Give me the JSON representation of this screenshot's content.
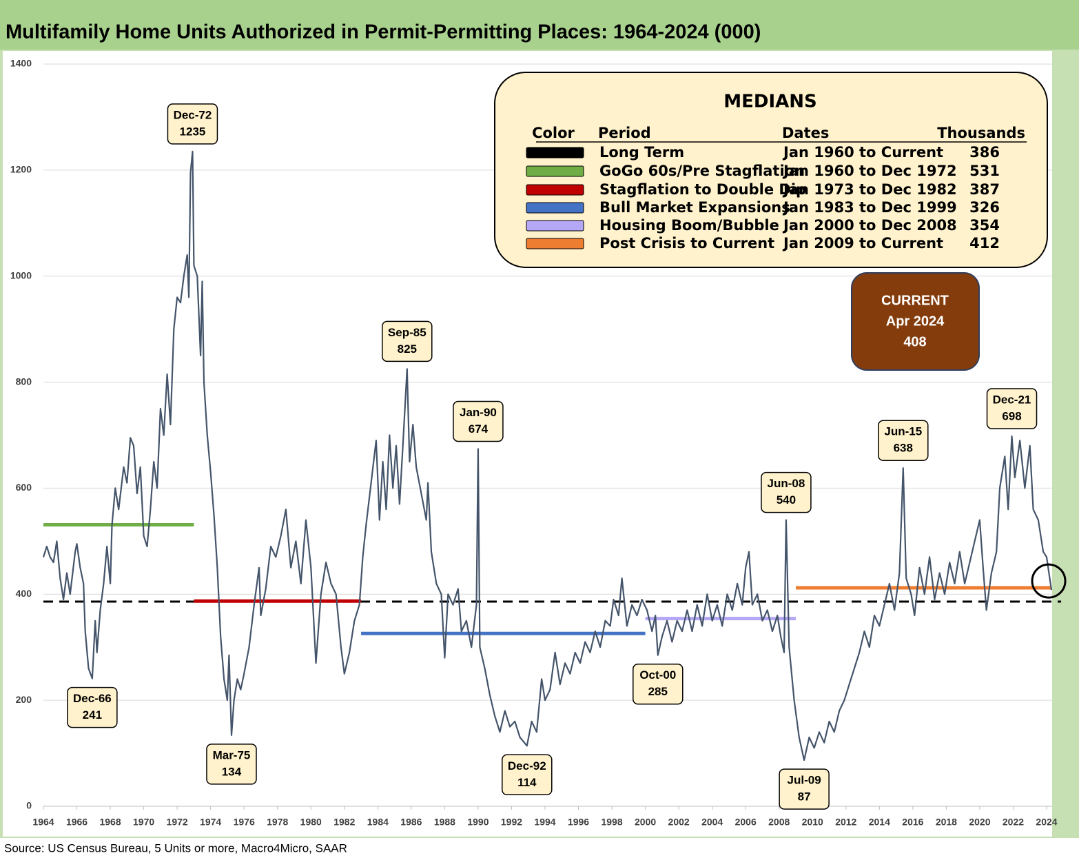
{
  "chart_data": {
    "type": "line",
    "title": "Multifamily Home Units Authorized in Permit-Permitting Places: 1964-2024 (000)",
    "source": "Source: US Census Bureau, 5 Units or more, Macro4Micro, SAAR",
    "color": "#44546a",
    "xlim": [
      1964,
      2024.33
    ],
    "ylim": [
      0,
      1400
    ],
    "yticks": [
      0,
      200,
      400,
      600,
      800,
      1000,
      1200,
      1400
    ],
    "xticks": [
      1964,
      1966,
      1968,
      1970,
      1972,
      1974,
      1976,
      1978,
      1980,
      1982,
      1984,
      1986,
      1988,
      1990,
      1992,
      1994,
      1996,
      1998,
      2000,
      2002,
      2004,
      2006,
      2008,
      2010,
      2012,
      2014,
      2016,
      2018,
      2020,
      2022,
      2024
    ],
    "grid": true,
    "x": [
      1964.0,
      1964.2,
      1964.4,
      1964.6,
      1964.8,
      1965.0,
      1965.2,
      1965.4,
      1965.6,
      1965.9,
      1966.0,
      1966.2,
      1966.4,
      1966.5,
      1966.7,
      1966.92,
      1967.1,
      1967.2,
      1967.4,
      1967.6,
      1967.8,
      1968.0,
      1968.1,
      1968.3,
      1968.5,
      1968.8,
      1969.0,
      1969.2,
      1969.4,
      1969.6,
      1969.8,
      1970.0,
      1970.2,
      1970.4,
      1970.6,
      1970.8,
      1971.0,
      1971.2,
      1971.4,
      1971.6,
      1971.8,
      1972.0,
      1972.2,
      1972.4,
      1972.6,
      1972.7,
      1972.8,
      1972.92,
      1973.0,
      1973.2,
      1973.4,
      1973.5,
      1973.6,
      1973.8,
      1974.0,
      1974.2,
      1974.4,
      1974.6,
      1974.8,
      1975.0,
      1975.1,
      1975.25,
      1975.4,
      1975.6,
      1975.8,
      1976.0,
      1976.3,
      1976.6,
      1976.9,
      1977.0,
      1977.3,
      1977.6,
      1977.9,
      1978.2,
      1978.5,
      1978.8,
      1979.1,
      1979.4,
      1979.7,
      1980.0,
      1980.3,
      1980.6,
      1980.9,
      1981.2,
      1981.5,
      1981.8,
      1982.0,
      1982.3,
      1982.6,
      1982.9,
      1983.1,
      1983.3,
      1983.6,
      1983.9,
      1984.1,
      1984.3,
      1984.5,
      1984.7,
      1984.9,
      1985.1,
      1985.3,
      1985.5,
      1985.75,
      1985.9,
      1986.1,
      1986.3,
      1986.6,
      1986.9,
      1987.0,
      1987.2,
      1987.5,
      1987.8,
      1988.0,
      1988.2,
      1988.5,
      1988.8,
      1989.0,
      1989.3,
      1989.6,
      1989.9,
      1990.0,
      1990.1,
      1990.4,
      1990.7,
      1991.0,
      1991.3,
      1991.6,
      1991.9,
      1992.2,
      1992.5,
      1992.92,
      1993.2,
      1993.5,
      1993.8,
      1994.0,
      1994.3,
      1994.6,
      1994.9,
      1995.2,
      1995.5,
      1995.8,
      1996.1,
      1996.4,
      1996.7,
      1997.0,
      1997.3,
      1997.6,
      1997.9,
      1998.1,
      1998.4,
      1998.6,
      1998.9,
      1999.2,
      1999.5,
      1999.8,
      2000.1,
      2000.4,
      2000.6,
      2000.75,
      2001.0,
      2001.3,
      2001.6,
      2001.9,
      2002.2,
      2002.5,
      2002.8,
      2003.1,
      2003.4,
      2003.7,
      2004.0,
      2004.3,
      2004.6,
      2004.9,
      2005.2,
      2005.5,
      2005.8,
      2006.0,
      2006.2,
      2006.4,
      2006.7,
      2007.0,
      2007.3,
      2007.6,
      2007.9,
      2008.1,
      2008.3,
      2008.42,
      2008.6,
      2008.9,
      2009.2,
      2009.5,
      2009.8,
      2010.1,
      2010.4,
      2010.7,
      2011.0,
      2011.3,
      2011.6,
      2011.9,
      2012.2,
      2012.5,
      2012.8,
      2013.1,
      2013.4,
      2013.7,
      2014.0,
      2014.3,
      2014.6,
      2014.9,
      2015.2,
      2015.42,
      2015.6,
      2015.9,
      2016.1,
      2016.4,
      2016.7,
      2017.0,
      2017.3,
      2017.6,
      2017.9,
      2018.2,
      2018.5,
      2018.8,
      2019.1,
      2019.4,
      2019.7,
      2020.0,
      2020.2,
      2020.4,
      2020.7,
      2021.0,
      2021.2,
      2021.5,
      2021.7,
      2021.92,
      2022.1,
      2022.4,
      2022.7,
      2023.0,
      2023.2,
      2023.5,
      2023.8,
      2024.0,
      2024.29
    ],
    "values": [
      470,
      490,
      470,
      460,
      500,
      430,
      390,
      440,
      400,
      480,
      495,
      450,
      420,
      330,
      260,
      241,
      350,
      290,
      370,
      420,
      490,
      420,
      530,
      600,
      560,
      640,
      610,
      695,
      680,
      590,
      640,
      510,
      490,
      560,
      650,
      600,
      750,
      700,
      815,
      720,
      900,
      960,
      950,
      1000,
      1040,
      960,
      1195,
      1235,
      1020,
      1000,
      850,
      990,
      800,
      700,
      630,
      550,
      450,
      320,
      240,
      200,
      285,
      134,
      200,
      240,
      220,
      250,
      300,
      380,
      450,
      360,
      410,
      490,
      470,
      510,
      560,
      450,
      500,
      420,
      540,
      450,
      270,
      400,
      460,
      420,
      400,
      300,
      250,
      290,
      350,
      380,
      470,
      530,
      610,
      690,
      540,
      650,
      560,
      700,
      600,
      680,
      570,
      680,
      825,
      650,
      720,
      640,
      590,
      540,
      610,
      480,
      420,
      400,
      280,
      400,
      380,
      410,
      330,
      350,
      300,
      380,
      674,
      300,
      260,
      210,
      170,
      140,
      180,
      150,
      160,
      130,
      114,
      160,
      140,
      240,
      200,
      220,
      290,
      230,
      270,
      250,
      290,
      270,
      310,
      290,
      330,
      300,
      350,
      340,
      390,
      360,
      430,
      340,
      380,
      360,
      390,
      370,
      330,
      360,
      285,
      320,
      350,
      310,
      350,
      330,
      370,
      330,
      380,
      340,
      400,
      350,
      380,
      340,
      400,
      370,
      420,
      380,
      450,
      480,
      380,
      400,
      350,
      370,
      330,
      360,
      320,
      290,
      540,
      300,
      200,
      130,
      87,
      130,
      110,
      140,
      120,
      160,
      140,
      180,
      200,
      230,
      260,
      290,
      330,
      300,
      360,
      340,
      380,
      420,
      370,
      440,
      638,
      430,
      400,
      360,
      450,
      400,
      470,
      390,
      440,
      400,
      460,
      420,
      480,
      420,
      460,
      500,
      540,
      450,
      370,
      440,
      480,
      600,
      660,
      560,
      698,
      620,
      690,
      600,
      680,
      560,
      540,
      480,
      470,
      408
    ],
    "annotations": [
      {
        "label": "Dec-66",
        "value": 241,
        "x": 1966.92
      },
      {
        "label": "Dec-72",
        "value": 1235,
        "x": 1972.92
      },
      {
        "label": "Mar-75",
        "value": 134,
        "x": 1975.25
      },
      {
        "label": "Sep-85",
        "value": 825,
        "x": 1985.75
      },
      {
        "label": "Jan-90",
        "value": 674,
        "x": 1990.0
      },
      {
        "label": "Dec-92",
        "value": 114,
        "x": 1992.92
      },
      {
        "label": "Oct-00",
        "value": 285,
        "x": 2000.75
      },
      {
        "label": "Jun-08",
        "value": 540,
        "x": 2008.42
      },
      {
        "label": "Jul-09",
        "value": 87,
        "x": 2009.5
      },
      {
        "label": "Jun-15",
        "value": 638,
        "x": 2015.42
      },
      {
        "label": "Dec-21",
        "value": 698,
        "x": 2021.92
      }
    ],
    "current": {
      "label": "CURRENT",
      "date": "Apr 2024",
      "value": 408
    },
    "medians_title": "MEDIANS",
    "medians_headers": [
      "Color",
      "Period",
      "Dates",
      "Thousands"
    ],
    "medians": [
      {
        "color": "#000000",
        "dashed": true,
        "period": "Long Term",
        "dates": "Jan 1960 to Current",
        "value": 386,
        "xrange": [
          1964,
          2024.29
        ]
      },
      {
        "color": "#70ad47",
        "period": "GoGo 60s/Pre Stagflation",
        "dates": "Jan 1960 to Dec 1972",
        "value": 531,
        "xrange": [
          1964,
          1973
        ]
      },
      {
        "color": "#c00000",
        "period": "Stagflation to Double Dip",
        "dates": "Jan 1973 to Dec 1982",
        "value": 387,
        "xrange": [
          1973,
          1983
        ]
      },
      {
        "color": "#4472c4",
        "period": "Bull Market Expansions",
        "dates": "Jan 1983 to Dec 1999",
        "value": 326,
        "xrange": [
          1983,
          2000
        ]
      },
      {
        "color": "#b4a7f5",
        "period": "Housing Boom/Bubble",
        "dates": "Jan 2000 to Dec 2008",
        "value": 354,
        "xrange": [
          2000,
          2009
        ]
      },
      {
        "color": "#ed7d31",
        "period": "Post Crisis to Current",
        "dates": "Jan 2009 to Current",
        "value": 412,
        "xrange": [
          2009,
          2024.29
        ]
      }
    ]
  }
}
